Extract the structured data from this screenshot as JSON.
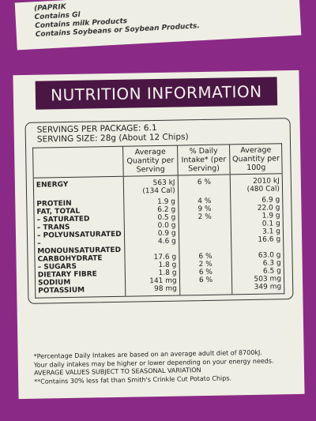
{
  "top_text": [
    "(PAPRIK",
    "Contains Gl",
    "Contains milk Products",
    "Contains Soybeans or Soybean Products."
  ],
  "header": {
    "title": "NUTRITION INFORMATION"
  },
  "servings": [
    "SERVINGS PER PACKAGE: 6.1",
    "SERVING SIZE: 28g (About 12 Chips)"
  ],
  "table": {
    "columns": [
      "Average Quantity per Serving",
      "% Daily Intake* (per Serving)",
      "Average Quantity per 100g"
    ],
    "rows": [
      [
        "ENERGY",
        "563 kJ\n(134 Cal)",
        "6 %",
        "2010 kJ\n(480 Cal)"
      ],
      [
        "PROTEIN",
        "1.9 g",
        "4 %",
        "6.9 g"
      ],
      [
        "FAT, TOTAL",
        "6.2 g",
        "9 %",
        "22.0 g"
      ],
      [
        "– SATURATED",
        "0.5 g",
        "2 %",
        "1.9 g"
      ],
      [
        "– TRANS",
        "0.0 g",
        null,
        "0.1 g"
      ],
      [
        "– POLYUNSATURATED",
        "0.9 g",
        null,
        "3.1 g"
      ],
      [
        "– MONOUNSATURATED",
        "4.6 g",
        null,
        "16.6 g"
      ],
      [
        "CARBOHYDRATE",
        "17.6 g",
        "6 %",
        "63.0 g"
      ],
      [
        "– SUGARS",
        "1.8 g",
        "2 %",
        "6.3 g"
      ],
      [
        "DIETARY FIBRE",
        "1.8 g",
        "6 %",
        "6.5 g"
      ],
      [
        "SODIUM",
        "141 mg",
        "6 %",
        "503 mg"
      ],
      [
        "POTASSIUM",
        "98 mg",
        null,
        "349 mg"
      ]
    ]
  },
  "footnotes": [
    "*Percentage Daily Intakes are based on an average adult diet of 8700kJ.",
    "Your daily intakes may be higher or lower depending on your energy needs.",
    "AVERAGE VALUES SUBJECT TO SEASONAL VARIATION",
    "**Contains 30% less fat than Smith's Crinkle Cut Potato Chips."
  ]
}
